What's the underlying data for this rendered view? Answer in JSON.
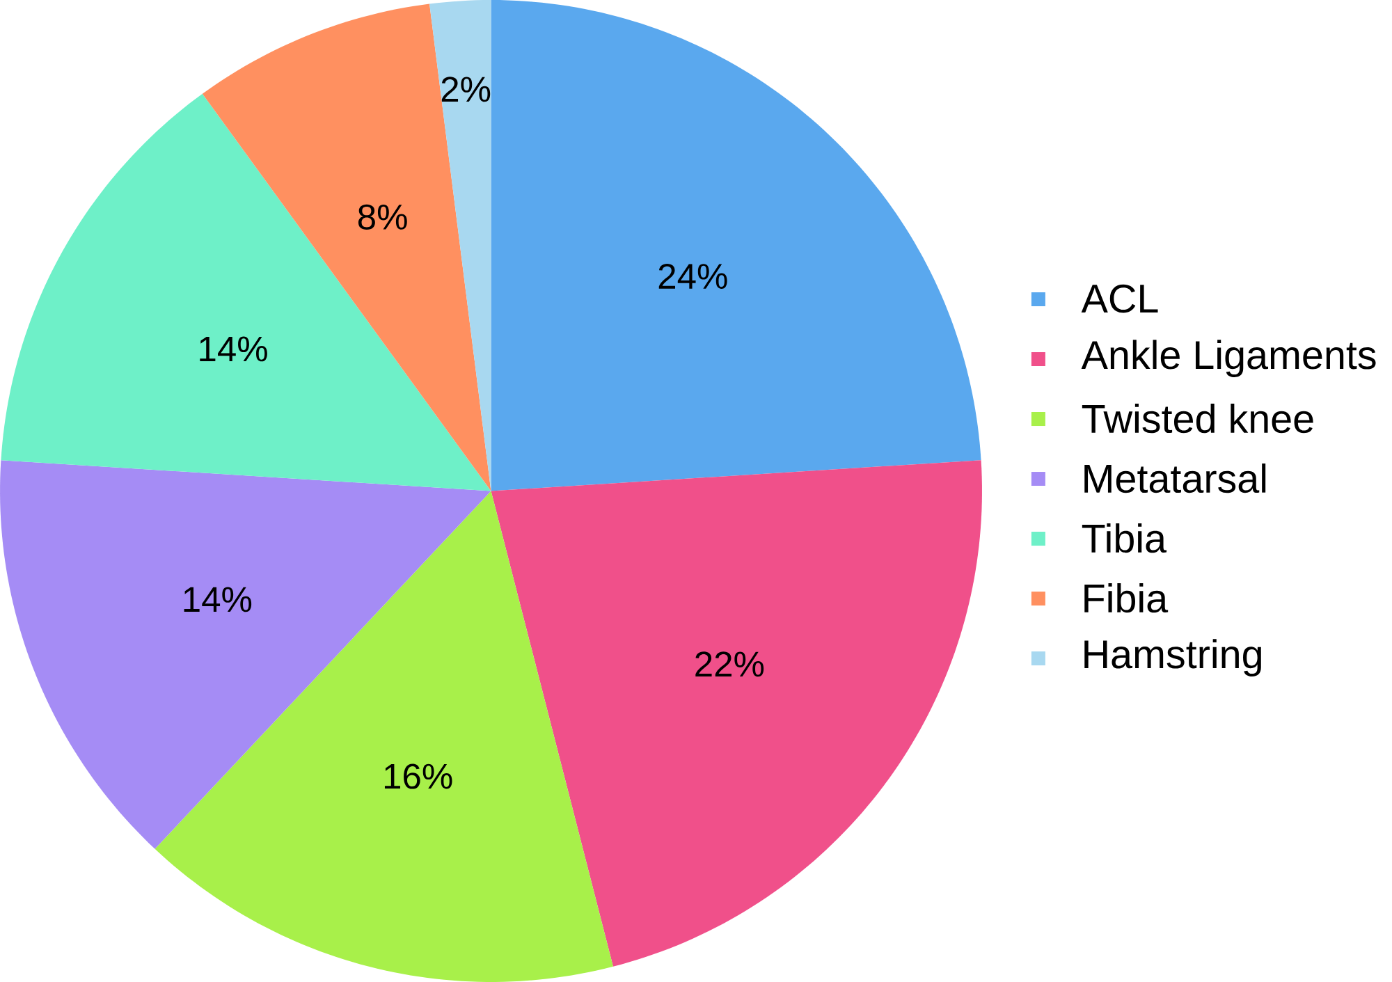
{
  "chart_data": {
    "type": "pie",
    "categories": [
      "ACL",
      "Ankle Ligaments",
      "Twisted knee",
      "Metatarsal",
      "Tibia",
      "Fibia",
      "Hamstring"
    ],
    "values": [
      24,
      22,
      16,
      14,
      14,
      8,
      2
    ],
    "value_labels": [
      "24%",
      "22%",
      "16%",
      "14%",
      "14%",
      "8%",
      "2%"
    ],
    "colors": [
      "#5aa8ee",
      "#f0508a",
      "#a8f04a",
      "#a58cf5",
      "#6ef0c8",
      "#ff9060",
      "#a8d8f0"
    ],
    "legend": "right"
  }
}
